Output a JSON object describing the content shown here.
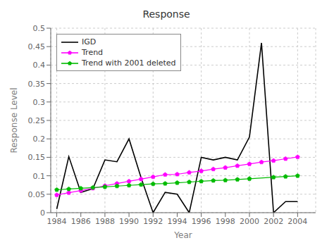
{
  "chart_data": {
    "type": "line",
    "title": "Response",
    "xlabel": "Year",
    "ylabel": "Response Level",
    "xlim": [
      1983.5,
      2005.5
    ],
    "ylim": [
      0,
      0.5
    ],
    "xticks": [
      1984,
      1986,
      1988,
      1990,
      1992,
      1994,
      1996,
      1998,
      2000,
      2002,
      2004
    ],
    "yticks": [
      0,
      0.05,
      0.1,
      0.15,
      0.2,
      0.25,
      0.3,
      0.35,
      0.4,
      0.45,
      0.5
    ],
    "grid": true,
    "legend": "upper left",
    "series": [
      {
        "name": "IGD",
        "color": "#000000",
        "marker": "none",
        "x": [
          1984,
          1985,
          1986,
          1987,
          1988,
          1989,
          1990,
          1991,
          1992,
          1993,
          1994,
          1995,
          1996,
          1997,
          1998,
          1999,
          2000,
          2001,
          2002,
          2003,
          2004
        ],
        "values": [
          0.01,
          0.152,
          0.055,
          0.065,
          0.143,
          0.138,
          0.2,
          0.095,
          0.0,
          0.055,
          0.05,
          0.0,
          0.15,
          0.143,
          0.15,
          0.143,
          0.205,
          0.46,
          0.0,
          0.03,
          0.03
        ]
      },
      {
        "name": "Trend",
        "color": "#ff00ff",
        "marker": "pentagon",
        "x": [
          1984,
          1985,
          1986,
          1987,
          1988,
          1989,
          1990,
          1991,
          1992,
          1993,
          1994,
          1995,
          1996,
          1997,
          1998,
          1999,
          2000,
          2001,
          2002,
          2003,
          2004
        ],
        "values": [
          0.048,
          0.054,
          0.06,
          0.066,
          0.073,
          0.079,
          0.085,
          0.091,
          0.097,
          0.103,
          0.104,
          0.109,
          0.113,
          0.118,
          0.122,
          0.127,
          0.132,
          0.137,
          0.141,
          0.146,
          0.151
        ]
      },
      {
        "name": "Trend with 2001 deleted",
        "color": "#00bb00",
        "marker": "pentagon",
        "x": [
          1984,
          1985,
          1986,
          1987,
          1988,
          1989,
          1990,
          1991,
          1992,
          1993,
          1994,
          1995,
          1996,
          1997,
          1998,
          1999,
          2000,
          2002,
          2003,
          2004
        ],
        "values": [
          0.062,
          0.064,
          0.066,
          0.068,
          0.07,
          0.072,
          0.074,
          0.076,
          0.078,
          0.079,
          0.081,
          0.083,
          0.085,
          0.087,
          0.088,
          0.09,
          0.092,
          0.096,
          0.098,
          0.1
        ]
      }
    ]
  }
}
